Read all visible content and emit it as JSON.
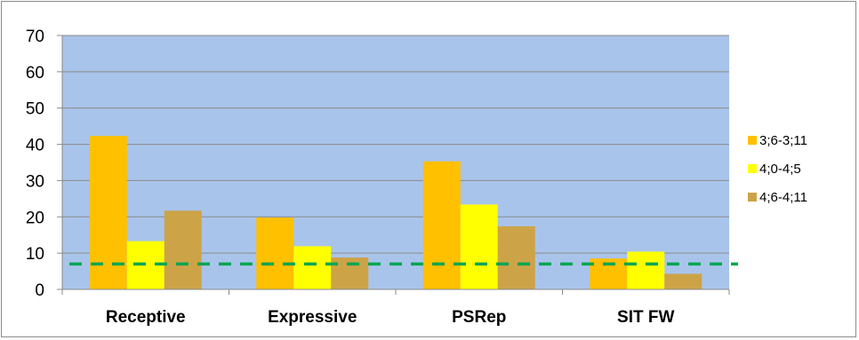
{
  "chart_data": {
    "type": "bar",
    "categories": [
      "Receptive",
      "Expressive",
      "PSRep",
      "SIT FW"
    ],
    "series": [
      {
        "name": "3;6-3;11",
        "values": [
          42.3,
          19.8,
          35.3,
          8.5
        ],
        "color": "#ffc000"
      },
      {
        "name": "4;0-4;5",
        "values": [
          13.3,
          11.9,
          23.4,
          10.4
        ],
        "color": "#ffff00"
      },
      {
        "name": "4;6-4;11",
        "values": [
          21.7,
          8.8,
          17.4,
          4.3
        ],
        "color": "#cda348"
      }
    ],
    "reference_line": {
      "value": 7,
      "style": "dashed",
      "color": "#00a651"
    },
    "ylim": [
      0,
      70
    ],
    "yticks": [
      0,
      10,
      20,
      30,
      40,
      50,
      60,
      70
    ],
    "grid": true,
    "plot_background": "#a9c4eb",
    "legend_position": "right",
    "title": "",
    "xlabel": "",
    "ylabel": ""
  }
}
